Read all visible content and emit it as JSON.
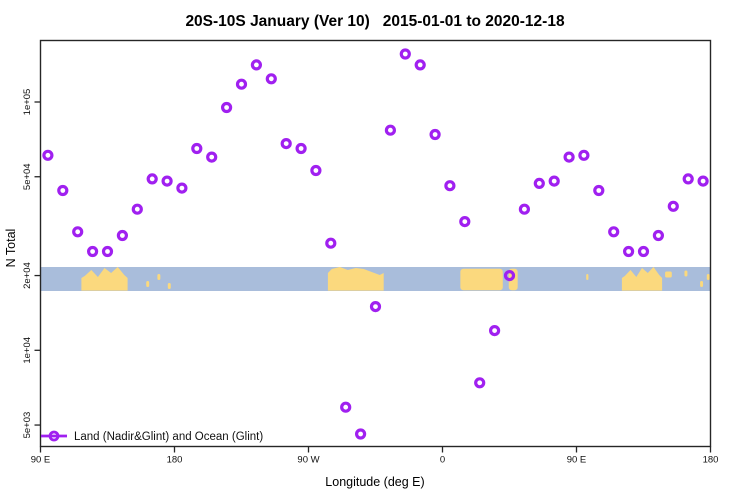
{
  "chart_data": {
    "type": "scatter",
    "title": "20S-10S January (Ver 10)   2015-01-01 to 2020-12-18",
    "xlabel": "Longitude (deg E)",
    "ylabel": "N Total",
    "grid": false,
    "marker": {
      "shape": "open-circle",
      "color": "#A020F0"
    },
    "x_axis": {
      "note": "longitude in deg E, wrapping eastward from 90E once around the globe to 180",
      "range": [
        90,
        540
      ],
      "ticks": [
        {
          "value": 90,
          "label": "90 E"
        },
        {
          "value": 180,
          "label": "180"
        },
        {
          "value": 270,
          "label": "90 W"
        },
        {
          "value": 360,
          "label": "0"
        },
        {
          "value": 450,
          "label": "90 E"
        },
        {
          "value": 540,
          "label": "180"
        }
      ]
    },
    "y_axis": {
      "scale": "log",
      "range": [
        4080,
        178000
      ],
      "ticks": [
        {
          "value": 100000,
          "label": "1e+05"
        },
        {
          "value": 50000,
          "label": "5e+04"
        },
        {
          "value": 20000,
          "label": "2e+04"
        },
        {
          "value": 10000,
          "label": "1e+04"
        },
        {
          "value": 5000,
          "label": "5e+03"
        }
      ]
    },
    "legend": {
      "label": "Land (Nadir&Glint) and Ocean (Glint)",
      "position": "bottom-left"
    },
    "points": [
      [
        95,
        61000
      ],
      [
        105,
        44000
      ],
      [
        115,
        30000
      ],
      [
        125,
        25000
      ],
      [
        135,
        25000
      ],
      [
        145,
        29000
      ],
      [
        155,
        37000
      ],
      [
        165,
        49000
      ],
      [
        175,
        48000
      ],
      [
        185,
        45000
      ],
      [
        195,
        65000
      ],
      [
        205,
        60000
      ],
      [
        215,
        95000
      ],
      [
        225,
        118000
      ],
      [
        235,
        141000
      ],
      [
        245,
        124000
      ],
      [
        255,
        68000
      ],
      [
        265,
        65000
      ],
      [
        275,
        53000
      ],
      [
        285,
        27000
      ],
      [
        295,
        5900
      ],
      [
        305,
        4600
      ],
      [
        315,
        15000
      ],
      [
        325,
        77000
      ],
      [
        335,
        156000
      ],
      [
        345,
        141000
      ],
      [
        355,
        74000
      ],
      [
        365,
        46000
      ],
      [
        375,
        33000
      ],
      [
        385,
        7400
      ],
      [
        395,
        12000
      ],
      [
        405,
        20000
      ],
      [
        415,
        37000
      ],
      [
        425,
        47000
      ],
      [
        435,
        48000
      ],
      [
        445,
        60000
      ],
      [
        455,
        61000
      ],
      [
        465,
        44000
      ],
      [
        475,
        30000
      ],
      [
        485,
        25000
      ],
      [
        495,
        25000
      ],
      [
        505,
        29000
      ],
      [
        515,
        38000
      ],
      [
        525,
        49000
      ],
      [
        535,
        48000
      ]
    ],
    "map_strip": {
      "note": "map band of latitudes 20S-10S drawn across the plot centered near N=2e+04",
      "center_value": 20000,
      "ocean_color": "#A9BDDB",
      "land_color": "#FBD97E",
      "land_segments": [
        {
          "lon": [
            117.5,
            148.5
          ],
          "kind": "spiky"
        },
        {
          "lon": [
            161,
            163
          ],
          "kind": "island"
        },
        {
          "lon": [
            168.5,
            170.5
          ],
          "kind": "island"
        },
        {
          "lon": [
            175.5,
            177.5
          ],
          "kind": "island"
        },
        {
          "lon": [
            283,
            320.5
          ],
          "kind": "tall"
        },
        {
          "lon": [
            372,
            400.5
          ],
          "kind": "full"
        },
        {
          "lon": [
            404.5,
            410.5
          ],
          "kind": "full"
        },
        {
          "lon": [
            456.5,
            458
          ],
          "kind": "island"
        },
        {
          "lon": [
            480.5,
            507.5
          ],
          "kind": "spiky"
        },
        {
          "lon": [
            509.5,
            514
          ],
          "kind": "island"
        },
        {
          "lon": [
            522.5,
            524.5
          ],
          "kind": "island"
        },
        {
          "lon": [
            533,
            535
          ],
          "kind": "island"
        },
        {
          "lon": [
            537.5,
            539.5
          ],
          "kind": "island"
        }
      ]
    },
    "frame_color": "#262626"
  }
}
